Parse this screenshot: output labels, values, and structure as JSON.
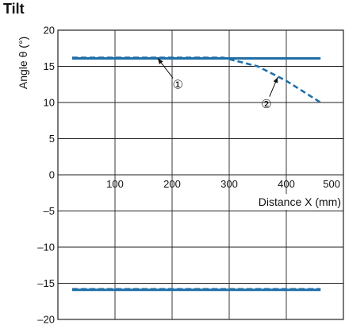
{
  "chart_data": {
    "type": "line",
    "title": "Tilt",
    "xlabel": "Distance X (mm)",
    "ylabel": "Angle θ (°)",
    "xlim": [
      0,
      500
    ],
    "ylim": [
      -20,
      20
    ],
    "x_ticks": [
      100,
      200,
      300,
      400,
      500
    ],
    "x_tick_labels": [
      "100",
      "200",
      "300",
      "400",
      "500"
    ],
    "y_ticks": [
      20,
      15,
      10,
      5,
      0,
      -5,
      -10,
      -15,
      -20
    ],
    "y_tick_labels": [
      "20",
      "15",
      "10",
      "5",
      "0",
      "–5",
      "–10",
      "–15",
      "–20"
    ],
    "grid": true,
    "line_color": "#1f6fa8",
    "series": [
      {
        "name": "①",
        "style": "solid",
        "points": [
          [
            25,
            16.1
          ],
          [
            460,
            16.1
          ]
        ]
      },
      {
        "name": "②",
        "style": "dashed",
        "points": [
          [
            25,
            16.2
          ],
          [
            290,
            16.2
          ],
          [
            350,
            15.0
          ],
          [
            400,
            13.0
          ],
          [
            460,
            10.0
          ]
        ]
      },
      {
        "name": "",
        "style": "solid",
        "points": [
          [
            25,
            -15.9
          ],
          [
            460,
            -15.9
          ]
        ]
      },
      {
        "name": "",
        "style": "dashed",
        "points": [
          [
            25,
            -15.8
          ],
          [
            460,
            -15.8
          ]
        ]
      }
    ],
    "annotations": [
      {
        "text": "①",
        "x": 210,
        "y": 12.5,
        "arrow_to": [
          175,
          16.1
        ]
      },
      {
        "text": "②",
        "x": 365,
        "y": 9.8,
        "arrow_to": [
          385,
          13.5
        ]
      }
    ]
  }
}
